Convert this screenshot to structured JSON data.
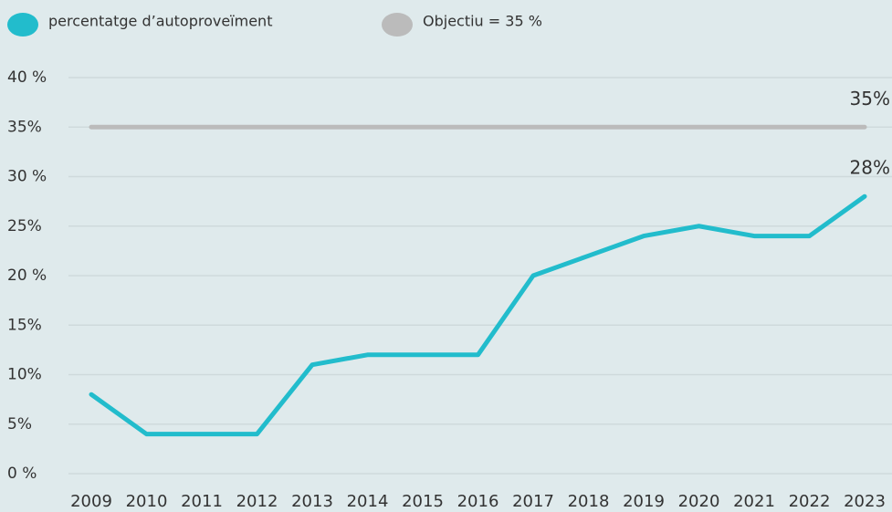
{
  "chart_data": {
    "type": "line",
    "categories": [
      "2009",
      "2010",
      "2011",
      "2012",
      "2013",
      "2014",
      "2015",
      "2016",
      "2017",
      "2018",
      "2019",
      "2020",
      "2021",
      "2022",
      "2023"
    ],
    "series": [
      {
        "name": "percentatge d’autoproveïment",
        "color": "#22bccc",
        "values": [
          8,
          4,
          4,
          4,
          11,
          12,
          12,
          12,
          20,
          22,
          24,
          25,
          24,
          24,
          28
        ],
        "value_labels": [
          null,
          null,
          null,
          null,
          null,
          null,
          null,
          null,
          null,
          null,
          null,
          null,
          null,
          null,
          "28%"
        ]
      },
      {
        "name": "Objectiu = 35 %",
        "color": "#bbbbbb",
        "values": [
          35,
          35,
          35,
          35,
          35,
          35,
          35,
          35,
          35,
          35,
          35,
          35,
          35,
          35,
          35
        ],
        "value_labels": [
          null,
          null,
          null,
          null,
          null,
          null,
          null,
          null,
          null,
          null,
          null,
          null,
          null,
          null,
          "35%"
        ]
      }
    ],
    "ylim": [
      0,
      40
    ],
    "yticks": [
      {
        "value": 0,
        "label": "0 %"
      },
      {
        "value": 5,
        "label": "5%"
      },
      {
        "value": 10,
        "label": "10%"
      },
      {
        "value": 15,
        "label": "15%"
      },
      {
        "value": 20,
        "label": "20 %"
      },
      {
        "value": 25,
        "label": "25%"
      },
      {
        "value": 30,
        "label": "30 %"
      },
      {
        "value": 35,
        "label": "35%"
      },
      {
        "value": 40,
        "label": "40 %"
      }
    ],
    "grid": true
  }
}
